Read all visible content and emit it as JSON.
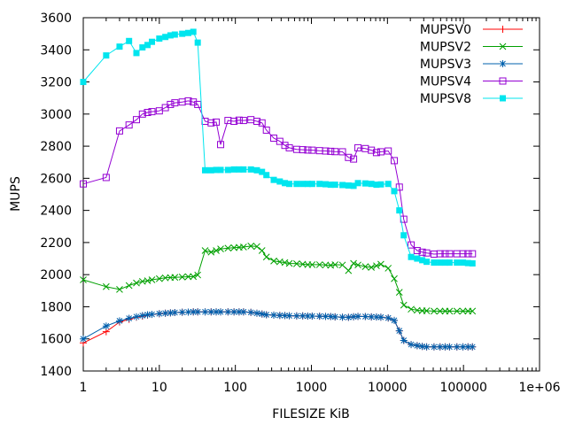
{
  "chart_data": {
    "type": "line",
    "title": "",
    "xlabel": "FILESIZE KiB",
    "ylabel": "MUPS",
    "x_scale": "log",
    "xlim": [
      1,
      1000000
    ],
    "ylim": [
      1400,
      3600
    ],
    "x_ticks": [
      1,
      10,
      100,
      1000,
      10000,
      100000,
      1000000
    ],
    "x_tick_labels": [
      "1",
      "10",
      "100",
      "1000",
      "10000",
      "100000",
      "1e+06"
    ],
    "y_ticks": [
      1400,
      1600,
      1800,
      2000,
      2200,
      2400,
      2600,
      2800,
      3000,
      3200,
      3400,
      3600
    ],
    "y_tick_labels": [
      "1400",
      "1600",
      "1800",
      "2000",
      "2200",
      "2400",
      "2600",
      "2800",
      "3000",
      "3200",
      "3400",
      "3600"
    ],
    "grid": false,
    "legend_position": "top-right",
    "x": [
      1,
      2,
      3,
      4,
      5,
      6,
      7,
      8,
      10,
      12,
      14,
      16,
      20,
      24,
      28,
      32,
      40,
      48,
      56,
      64,
      80,
      96,
      112,
      128,
      160,
      192,
      224,
      256,
      320,
      384,
      448,
      512,
      640,
      768,
      896,
      1024,
      1280,
      1536,
      1792,
      2048,
      2560,
      3072,
      3584,
      4096,
      5120,
      6144,
      7168,
      8192,
      10240,
      12288,
      14336,
      16384,
      20480,
      24576,
      28672,
      32768,
      40960,
      49152,
      57344,
      65536,
      81920,
      98304,
      114688,
      131072
    ],
    "series": [
      {
        "name": "MUPSV0",
        "color": "#ff0000",
        "marker": "plus",
        "values": [
          1575,
          1645,
          1705,
          1722,
          1735,
          1742,
          1748,
          1752,
          1756,
          1760,
          1762,
          1764,
          1766,
          1767,
          1768,
          1768,
          1768,
          1768,
          1768,
          1768,
          1768,
          1768,
          1768,
          1768,
          1765,
          1760,
          1755,
          1750,
          1748,
          1746,
          1745,
          1744,
          1743,
          1743,
          1742,
          1742,
          1741,
          1740,
          1739,
          1737,
          1735,
          1734,
          1738,
          1740,
          1739,
          1737,
          1736,
          1735,
          1730,
          1715,
          1650,
          1590,
          1565,
          1558,
          1553,
          1550,
          1550,
          1550,
          1550,
          1550,
          1550,
          1550,
          1550,
          1550
        ]
      },
      {
        "name": "MUPSV2",
        "color": "#00a000",
        "marker": "cross",
        "values": [
          1968,
          1925,
          1908,
          1932,
          1948,
          1958,
          1962,
          1968,
          1975,
          1980,
          1982,
          1983,
          1985,
          1987,
          1988,
          1998,
          2150,
          2140,
          2150,
          2160,
          2165,
          2168,
          2170,
          2172,
          2178,
          2175,
          2150,
          2110,
          2085,
          2080,
          2075,
          2070,
          2068,
          2065,
          2062,
          2062,
          2062,
          2060,
          2058,
          2062,
          2060,
          2025,
          2070,
          2060,
          2050,
          2045,
          2055,
          2065,
          2040,
          1975,
          1890,
          1810,
          1785,
          1778,
          1775,
          1775,
          1773,
          1773,
          1773,
          1773,
          1773,
          1773,
          1773,
          1773
        ]
      },
      {
        "name": "MUPSV3",
        "color": "#0060ad",
        "marker": "star",
        "values": [
          1600,
          1680,
          1712,
          1728,
          1738,
          1745,
          1750,
          1753,
          1757,
          1760,
          1762,
          1764,
          1766,
          1767,
          1768,
          1768,
          1768,
          1768,
          1768,
          1768,
          1768,
          1768,
          1768,
          1768,
          1765,
          1760,
          1755,
          1750,
          1748,
          1746,
          1745,
          1744,
          1743,
          1743,
          1742,
          1742,
          1741,
          1740,
          1739,
          1737,
          1735,
          1734,
          1738,
          1740,
          1739,
          1737,
          1736,
          1735,
          1730,
          1715,
          1650,
          1590,
          1565,
          1558,
          1553,
          1550,
          1550,
          1550,
          1550,
          1550,
          1550,
          1550,
          1550,
          1550
        ]
      },
      {
        "name": "MUPSV4",
        "color": "#9400d3",
        "marker": "open-square",
        "values": [
          2565,
          2605,
          2895,
          2932,
          2965,
          3000,
          3010,
          3015,
          3020,
          3040,
          3060,
          3070,
          3075,
          3082,
          3075,
          3060,
          2955,
          2945,
          2950,
          2810,
          2960,
          2955,
          2962,
          2960,
          2965,
          2955,
          2945,
          2900,
          2850,
          2830,
          2805,
          2790,
          2780,
          2778,
          2776,
          2775,
          2772,
          2770,
          2768,
          2766,
          2765,
          2730,
          2720,
          2790,
          2785,
          2775,
          2760,
          2765,
          2770,
          2710,
          2545,
          2345,
          2185,
          2150,
          2140,
          2135,
          2128,
          2130,
          2130,
          2130,
          2130,
          2130,
          2130,
          2130
        ]
      },
      {
        "name": "MUPSV8",
        "color": "#00e5ee",
        "marker": "filled-square",
        "values": [
          3200,
          3365,
          3420,
          3455,
          3380,
          3415,
          3430,
          3450,
          3470,
          3480,
          3490,
          3495,
          3500,
          3505,
          3512,
          3445,
          2650,
          2650,
          2652,
          2652,
          2652,
          2655,
          2655,
          2655,
          2655,
          2650,
          2640,
          2620,
          2590,
          2580,
          2570,
          2565,
          2565,
          2565,
          2565,
          2565,
          2565,
          2563,
          2560,
          2560,
          2558,
          2555,
          2553,
          2570,
          2568,
          2565,
          2560,
          2562,
          2565,
          2520,
          2400,
          2245,
          2110,
          2100,
          2090,
          2080,
          2075,
          2075,
          2075,
          2075,
          2075,
          2075,
          2072,
          2070
        ]
      }
    ]
  }
}
